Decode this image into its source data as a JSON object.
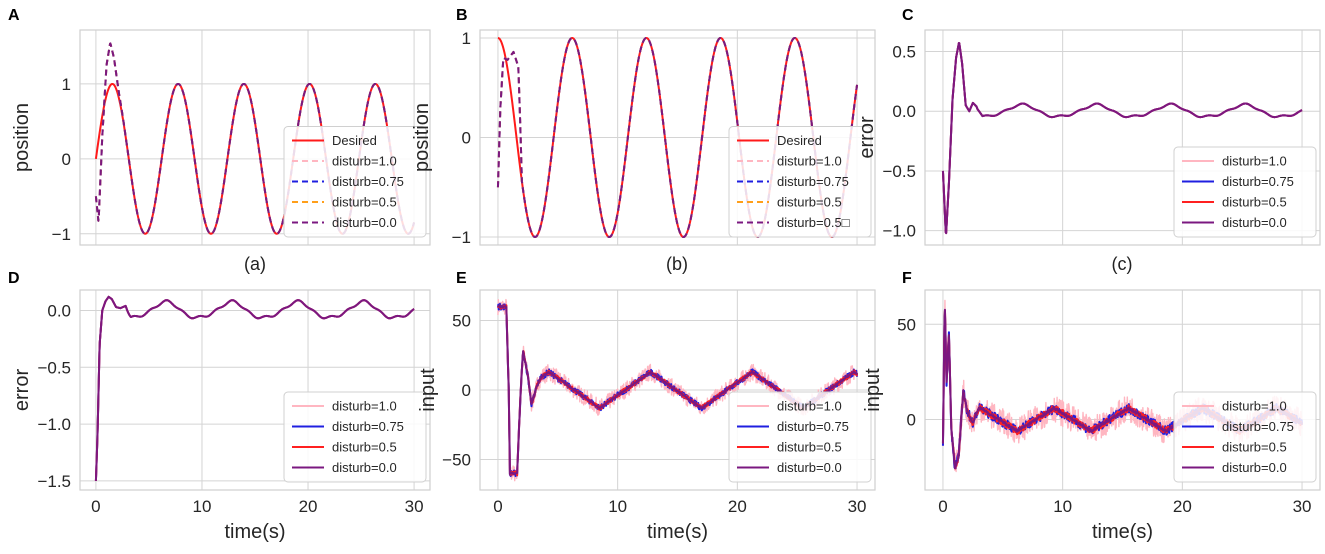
{
  "figure": {
    "colors": {
      "Desired": "#ff1a1a",
      "disturb=1.0": "#ffb6c1",
      "disturb=0.75": "#1f1fe0",
      "disturb=0.5": "#ff2020",
      "disturb=0.0": "#7b1880",
      "orange": "#ff9f1a",
      "pink_dash": "#ffb6c1",
      "purple_dash": "#7b1880"
    }
  },
  "chart_data": [
    {
      "id": "A",
      "letter": "A",
      "caption": "(a)",
      "type": "line",
      "ylabel": "position",
      "xlabel": "",
      "xlim": [
        -1.5,
        31.5
      ],
      "ylim": [
        -1.15,
        1.72
      ],
      "xticks": [
        0,
        10,
        20,
        30
      ],
      "show_xtick_labels": false,
      "yticks": [
        -1,
        0,
        1
      ],
      "ytick_labels": [
        "−1",
        "0",
        "1"
      ],
      "legend_position": "lower-right",
      "signal": {
        "kind": "sine",
        "period": 6.2,
        "amp": 1.0,
        "tmax": 30,
        "phase": "sine"
      },
      "series": [
        {
          "name": "Desired",
          "style": "solid",
          "color": "#ff1a1a"
        },
        {
          "name": "disturb=1.0",
          "style": "dash",
          "color": "#ffb6c1"
        },
        {
          "name": "disturb=0.75",
          "style": "dash",
          "color": "#1f1fe0"
        },
        {
          "name": "disturb=0.5",
          "style": "dash",
          "color": "#ff9f1a"
        },
        {
          "name": "disturb=0.0",
          "style": "dash",
          "color": "#7b1880"
        }
      ],
      "transient": [
        [
          0,
          -0.5
        ],
        [
          0.25,
          -0.85
        ],
        [
          0.6,
          0.3
        ],
        [
          1.0,
          1.25
        ],
        [
          1.35,
          1.55
        ],
        [
          1.7,
          1.35
        ],
        [
          2.2,
          0.85
        ],
        [
          2.8,
          0.35
        ]
      ]
    },
    {
      "id": "B",
      "letter": "B",
      "caption": "(b)",
      "type": "line",
      "ylabel": "position",
      "xlabel": "",
      "xlim": [
        -1.5,
        31.5
      ],
      "ylim": [
        -1.08,
        1.08
      ],
      "xticks": [
        0,
        10,
        20,
        30
      ],
      "show_xtick_labels": false,
      "yticks": [
        -1,
        0,
        1
      ],
      "ytick_labels": [
        "−1",
        "0",
        "1"
      ],
      "legend_position": "lower-right",
      "signal": {
        "kind": "cosine",
        "period": 6.2,
        "amp": 1.0,
        "tmax": 30
      },
      "series": [
        {
          "name": "Desired",
          "style": "solid",
          "color": "#ff1a1a"
        },
        {
          "name": "disturb=1.0",
          "style": "dash",
          "color": "#ffb6c1"
        },
        {
          "name": "disturb=0.75",
          "style": "dash",
          "color": "#1f1fe0"
        },
        {
          "name": "disturb=0.5",
          "style": "dash",
          "color": "#ff9f1a"
        },
        {
          "name": "disturb=0.5□",
          "style": "dash",
          "color": "#7b1880"
        }
      ],
      "transient": [
        [
          0,
          -0.5
        ],
        [
          0.2,
          0.3
        ],
        [
          0.45,
          0.8
        ],
        [
          0.8,
          0.78
        ],
        [
          1.3,
          0.86
        ],
        [
          2.0,
          0.6
        ]
      ]
    },
    {
      "id": "C",
      "letter": "C",
      "caption": "(c)",
      "type": "line",
      "ylabel": "error",
      "xlabel": "",
      "xlim": [
        -1.5,
        31.5
      ],
      "ylim": [
        -1.12,
        0.68
      ],
      "xticks": [
        0,
        10,
        20,
        30
      ],
      "show_xtick_labels": false,
      "yticks": [
        -1.0,
        -0.5,
        0.0,
        0.5
      ],
      "ytick_labels": [
        "−1.0",
        "−0.5",
        "0.0",
        "0.5"
      ],
      "legend_position": "lower-right",
      "signal": {
        "kind": "error",
        "amp": 0.05,
        "period": 6.2,
        "tmax": 30
      },
      "series": [
        {
          "name": "disturb=1.0",
          "style": "solid",
          "color": "#ffb6c1"
        },
        {
          "name": "disturb=0.75",
          "style": "solid",
          "color": "#1f1fe0"
        },
        {
          "name": "disturb=0.5",
          "style": "solid",
          "color": "#ff2020"
        },
        {
          "name": "disturb=0.0",
          "style": "solid",
          "color": "#7b1880"
        }
      ],
      "transient": [
        [
          0,
          -0.5
        ],
        [
          0.25,
          -1.05
        ],
        [
          0.5,
          -0.6
        ],
        [
          0.8,
          0.1
        ],
        [
          1.1,
          0.45
        ],
        [
          1.35,
          0.58
        ],
        [
          1.6,
          0.4
        ],
        [
          1.9,
          0.05
        ],
        [
          2.2,
          0.0
        ],
        [
          2.5,
          0.07
        ],
        [
          2.9,
          0.03
        ],
        [
          3.3,
          0.05
        ]
      ]
    },
    {
      "id": "D",
      "letter": "D",
      "caption": "",
      "type": "line",
      "ylabel": "error",
      "xlabel": "time(s)",
      "xlim": [
        -1.5,
        31.5
      ],
      "ylim": [
        -1.58,
        0.18
      ],
      "xticks": [
        0,
        10,
        20,
        30
      ],
      "show_xtick_labels": true,
      "yticks": [
        -1.5,
        -1.0,
        -0.5,
        0.0
      ],
      "ytick_labels": [
        "−1.5",
        "−1.0",
        "−0.5",
        "0.0"
      ],
      "legend_position": "lower-right",
      "signal": {
        "kind": "error",
        "amp": 0.07,
        "period": 6.2,
        "tmax": 30
      },
      "series": [
        {
          "name": "disturb=1.0",
          "style": "solid",
          "color": "#ffb6c1"
        },
        {
          "name": "disturb=0.75",
          "style": "solid",
          "color": "#1f1fe0"
        },
        {
          "name": "disturb=0.5",
          "style": "solid",
          "color": "#ff2020"
        },
        {
          "name": "disturb=0.0",
          "style": "solid",
          "color": "#7b1880"
        }
      ],
      "transient": [
        [
          0,
          -1.5
        ],
        [
          0.15,
          -1.1
        ],
        [
          0.35,
          -0.3
        ],
        [
          0.6,
          0.0
        ],
        [
          0.9,
          0.08
        ],
        [
          1.2,
          0.12
        ],
        [
          1.5,
          0.1
        ],
        [
          1.9,
          0.03
        ],
        [
          2.3,
          0.02
        ],
        [
          2.8,
          0.04
        ],
        [
          3.3,
          0.01
        ]
      ]
    },
    {
      "id": "E",
      "letter": "E",
      "caption": "",
      "type": "line",
      "ylabel": "input",
      "xlabel": "time(s)",
      "xlim": [
        -1.5,
        31.5
      ],
      "ylim": [
        -72,
        72
      ],
      "xticks": [
        0,
        10,
        20,
        30
      ],
      "show_xtick_labels": true,
      "yticks": [
        -50,
        0,
        50
      ],
      "ytick_labels": [
        "−50",
        "0",
        "50"
      ],
      "legend_position": "lower-right",
      "signal": {
        "kind": "input",
        "amp": 13,
        "period": 8.5,
        "tmax": 30,
        "noise": 6
      },
      "series": [
        {
          "name": "disturb=1.0",
          "style": "solid",
          "color": "#ffb6c1"
        },
        {
          "name": "disturb=0.75",
          "style": "solid",
          "color": "#1f1fe0"
        },
        {
          "name": "disturb=0.5",
          "style": "solid",
          "color": "#ff2020"
        },
        {
          "name": "disturb=0.0",
          "style": "solid",
          "color": "#7b1880"
        }
      ],
      "transient": [
        [
          0,
          60
        ],
        [
          0.7,
          60
        ],
        [
          0.9,
          0
        ],
        [
          1.0,
          -60
        ],
        [
          1.6,
          -60
        ],
        [
          1.9,
          0
        ],
        [
          2.1,
          28
        ],
        [
          2.5,
          10
        ],
        [
          2.8,
          -10
        ],
        [
          3.2,
          0
        ],
        [
          3.6,
          5
        ]
      ]
    },
    {
      "id": "F",
      "letter": "F",
      "caption": "",
      "type": "line",
      "ylabel": "input",
      "xlabel": "time(s)",
      "xlim": [
        -1.5,
        31.5
      ],
      "ylim": [
        -37,
        68
      ],
      "xticks": [
        0,
        10,
        20,
        30
      ],
      "show_xtick_labels": true,
      "yticks": [
        0,
        50
      ],
      "ytick_labels": [
        "0",
        "50"
      ],
      "legend_position": "lower-right",
      "signal": {
        "kind": "input",
        "amp": 6,
        "period": 6.2,
        "tmax": 30,
        "noise": 7
      },
      "series": [
        {
          "name": "disturb=1.0",
          "style": "solid",
          "color": "#ffb6c1"
        },
        {
          "name": "disturb=0.75",
          "style": "solid",
          "color": "#1f1fe0"
        },
        {
          "name": "disturb=0.5",
          "style": "solid",
          "color": "#ff2020"
        },
        {
          "name": "disturb=0.0",
          "style": "solid",
          "color": "#7b1880"
        }
      ],
      "transient": [
        [
          0,
          -12
        ],
        [
          0.15,
          62
        ],
        [
          0.3,
          20
        ],
        [
          0.5,
          45
        ],
        [
          0.7,
          -5
        ],
        [
          1.0,
          -25
        ],
        [
          1.3,
          -20
        ],
        [
          1.7,
          15
        ],
        [
          2.0,
          5
        ],
        [
          2.5,
          -2
        ],
        [
          3.0,
          3
        ]
      ]
    }
  ]
}
